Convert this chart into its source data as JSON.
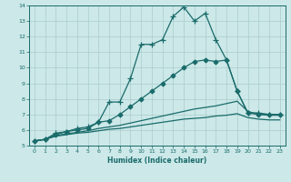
{
  "title": "",
  "xlabel": "Humidex (Indice chaleur)",
  "background_color": "#cce8e8",
  "grid_color": "#aacccc",
  "line_color": "#1a6b6b",
  "xlim": [
    -0.5,
    23.5
  ],
  "ylim": [
    5,
    14
  ],
  "xticks": [
    0,
    1,
    2,
    3,
    4,
    5,
    6,
    7,
    8,
    9,
    10,
    11,
    12,
    13,
    14,
    15,
    16,
    17,
    18,
    19,
    20,
    21,
    22,
    23
  ],
  "yticks": [
    5,
    6,
    7,
    8,
    9,
    10,
    11,
    12,
    13,
    14
  ],
  "series": [
    {
      "x": [
        0,
        1,
        2,
        3,
        4,
        5,
        6,
        7,
        8,
        9,
        10,
        11,
        12,
        13,
        14,
        15,
        16,
        17,
        18,
        19,
        20,
        21,
        22,
        23
      ],
      "y": [
        5.3,
        5.4,
        5.8,
        5.9,
        6.1,
        6.2,
        6.5,
        7.8,
        7.8,
        9.3,
        11.5,
        11.5,
        11.8,
        13.3,
        13.9,
        13.0,
        13.5,
        11.8,
        10.5,
        8.5,
        7.1,
        7.1,
        7.0,
        7.0
      ],
      "marker": "+",
      "markersize": 4,
      "lw": 0.9
    },
    {
      "x": [
        0,
        1,
        2,
        3,
        4,
        5,
        6,
        7,
        8,
        9,
        10,
        11,
        12,
        13,
        14,
        15,
        16,
        17,
        18,
        19,
        20,
        21,
        22,
        23
      ],
      "y": [
        5.3,
        5.4,
        5.7,
        5.9,
        6.0,
        6.1,
        6.5,
        6.6,
        7.0,
        7.5,
        8.0,
        8.5,
        9.0,
        9.5,
        10.0,
        10.4,
        10.5,
        10.4,
        10.5,
        8.5,
        7.1,
        7.0,
        7.0,
        7.0
      ],
      "marker": "D",
      "markersize": 2.5,
      "lw": 0.9
    },
    {
      "x": [
        0,
        1,
        2,
        3,
        4,
        5,
        6,
        7,
        8,
        9,
        10,
        11,
        12,
        13,
        14,
        15,
        16,
        17,
        18,
        19,
        20,
        21,
        22,
        23
      ],
      "y": [
        5.3,
        5.4,
        5.65,
        5.75,
        5.85,
        5.95,
        6.1,
        6.2,
        6.3,
        6.45,
        6.6,
        6.75,
        6.9,
        7.05,
        7.2,
        7.35,
        7.45,
        7.55,
        7.7,
        7.85,
        7.2,
        7.0,
        6.95,
        6.95
      ],
      "marker": null,
      "markersize": 0,
      "lw": 0.9
    },
    {
      "x": [
        0,
        1,
        2,
        3,
        4,
        5,
        6,
        7,
        8,
        9,
        10,
        11,
        12,
        13,
        14,
        15,
        16,
        17,
        18,
        19,
        20,
        21,
        22,
        23
      ],
      "y": [
        5.3,
        5.4,
        5.6,
        5.7,
        5.8,
        5.85,
        5.95,
        6.05,
        6.1,
        6.2,
        6.3,
        6.4,
        6.5,
        6.6,
        6.7,
        6.75,
        6.8,
        6.9,
        6.95,
        7.05,
        6.8,
        6.7,
        6.65,
        6.65
      ],
      "marker": null,
      "markersize": 0,
      "lw": 0.9
    }
  ]
}
